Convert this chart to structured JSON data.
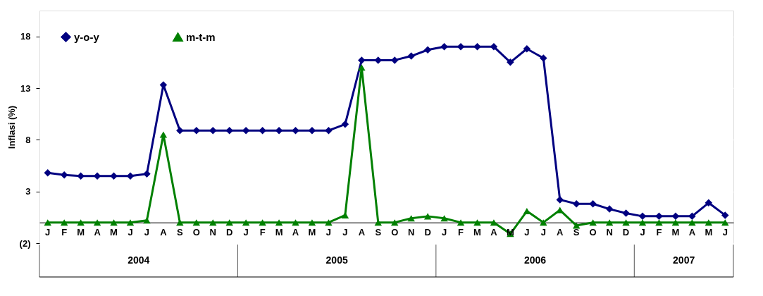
{
  "chart_data": {
    "type": "line",
    "ylabel": "Inflasi (%)",
    "categories": [
      "J",
      "F",
      "M",
      "A",
      "M",
      "J",
      "J",
      "A",
      "S",
      "O",
      "N",
      "D",
      "J",
      "F",
      "M",
      "A",
      "M",
      "J",
      "J",
      "A",
      "S",
      "O",
      "N",
      "D",
      "J",
      "F",
      "M",
      "A",
      "M",
      "J",
      "J",
      "A",
      "S",
      "O",
      "N",
      "D",
      "J",
      "F",
      "M",
      "A",
      "M",
      "J"
    ],
    "series": [
      {
        "name": "y-o-y",
        "color": "#000080",
        "marker": "diamond",
        "values": [
          4.8,
          4.6,
          4.5,
          4.5,
          4.5,
          4.5,
          4.7,
          13.3,
          8.9,
          8.9,
          8.9,
          8.9,
          8.9,
          8.9,
          8.9,
          8.9,
          8.9,
          8.9,
          9.5,
          15.7,
          15.7,
          15.7,
          16.1,
          16.7,
          17.0,
          17.0,
          17.0,
          17.0,
          15.5,
          16.8,
          15.9,
          2.2,
          1.8,
          1.8,
          1.3,
          0.9,
          0.6,
          0.6,
          0.6,
          0.6,
          1.9,
          0.7
        ]
      },
      {
        "name": "m-t-m",
        "color": "#008000",
        "marker": "triangle",
        "values": [
          0,
          0,
          0,
          0,
          0,
          0,
          0.2,
          8.5,
          0,
          0,
          0,
          0,
          0,
          0,
          0,
          0,
          0,
          0,
          0.7,
          15.0,
          0,
          0,
          0.4,
          0.6,
          0.4,
          0,
          0,
          0,
          -1.1,
          1.1,
          0,
          1.2,
          -0.3,
          0,
          0,
          0,
          0,
          0,
          0,
          0,
          0,
          0
        ]
      }
    ],
    "ylim": [
      -2,
      20.5
    ],
    "yticks": [
      {
        "value": -2,
        "label": "(2)"
      },
      3,
      8,
      13,
      18
    ],
    "grid": "y",
    "legend": "top left",
    "line_style": "solid",
    "annotations": [
      "2004",
      "2005",
      "2006",
      "2007"
    ]
  }
}
